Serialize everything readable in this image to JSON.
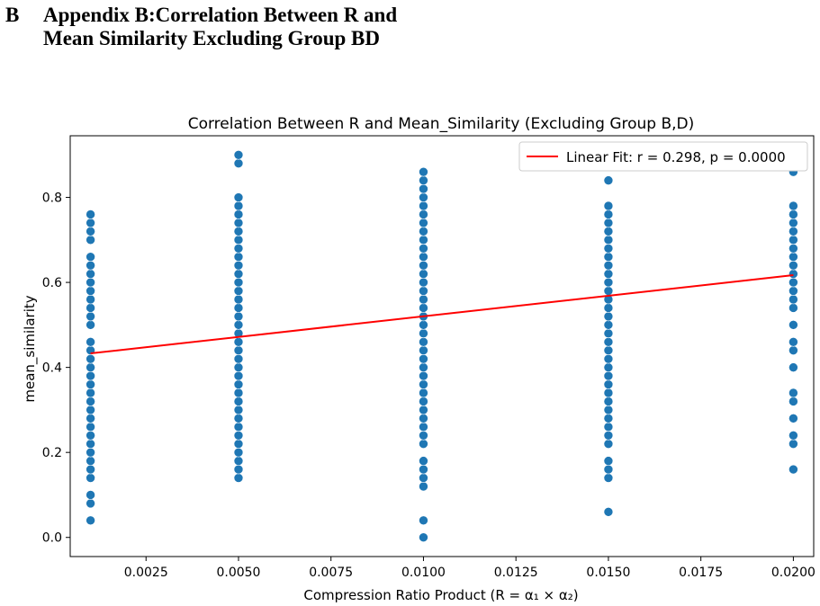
{
  "section": {
    "number": "B",
    "title": "Appendix B:Correlation Between R and Mean Similarity Excluding Group BD"
  },
  "colors": {
    "points": "#1f77b4",
    "fit_line": "#ff0000",
    "axes": "#000000"
  },
  "chart_data": {
    "type": "scatter",
    "title": "Correlation Between R and Mean_Similarity (Excluding Group B,D)",
    "xlabel": "Compression Ratio Product (R = α₁ × α₂)",
    "ylabel": "mean_similarity",
    "xlim": [
      0.00045,
      0.02055
    ],
    "ylim": [
      -0.045,
      0.945
    ],
    "xticks": [
      0.0025,
      0.005,
      0.0075,
      0.01,
      0.0125,
      0.015,
      0.0175,
      0.02
    ],
    "xtick_labels": [
      "0.0025",
      "0.0050",
      "0.0075",
      "0.0100",
      "0.0125",
      "0.0150",
      "0.0175",
      "0.0200"
    ],
    "yticks": [
      0.0,
      0.2,
      0.4,
      0.6,
      0.8
    ],
    "ytick_labels": [
      "0.0",
      "0.2",
      "0.4",
      "0.6",
      "0.8"
    ],
    "grid": false,
    "legend_position": "top-right",
    "series": [
      {
        "name": "",
        "kind": "scatter",
        "groups": [
          {
            "x": 0.001,
            "y": [
              0.04,
              0.08,
              0.1,
              0.14,
              0.16,
              0.18,
              0.2,
              0.22,
              0.24,
              0.26,
              0.28,
              0.3,
              0.32,
              0.34,
              0.36,
              0.38,
              0.4,
              0.42,
              0.44,
              0.46,
              0.5,
              0.52,
              0.54,
              0.56,
              0.58,
              0.6,
              0.62,
              0.64,
              0.66,
              0.7,
              0.72,
              0.74,
              0.76
            ]
          },
          {
            "x": 0.005,
            "y": [
              0.14,
              0.16,
              0.18,
              0.2,
              0.22,
              0.24,
              0.26,
              0.28,
              0.3,
              0.32,
              0.34,
              0.36,
              0.38,
              0.4,
              0.42,
              0.44,
              0.46,
              0.48,
              0.5,
              0.52,
              0.54,
              0.56,
              0.58,
              0.6,
              0.62,
              0.64,
              0.66,
              0.68,
              0.7,
              0.72,
              0.74,
              0.76,
              0.78,
              0.8,
              0.88,
              0.9
            ]
          },
          {
            "x": 0.01,
            "y": [
              0.0,
              0.04,
              0.12,
              0.14,
              0.16,
              0.18,
              0.22,
              0.24,
              0.26,
              0.28,
              0.3,
              0.32,
              0.34,
              0.36,
              0.38,
              0.4,
              0.42,
              0.44,
              0.46,
              0.48,
              0.5,
              0.52,
              0.54,
              0.56,
              0.58,
              0.6,
              0.62,
              0.64,
              0.66,
              0.68,
              0.7,
              0.72,
              0.74,
              0.76,
              0.78,
              0.8,
              0.82,
              0.84,
              0.86
            ]
          },
          {
            "x": 0.015,
            "y": [
              0.06,
              0.14,
              0.16,
              0.18,
              0.22,
              0.24,
              0.26,
              0.28,
              0.3,
              0.32,
              0.34,
              0.36,
              0.38,
              0.4,
              0.42,
              0.44,
              0.46,
              0.48,
              0.5,
              0.52,
              0.54,
              0.56,
              0.58,
              0.6,
              0.62,
              0.64,
              0.66,
              0.68,
              0.7,
              0.72,
              0.74,
              0.76,
              0.78,
              0.84
            ]
          },
          {
            "x": 0.02,
            "y": [
              0.16,
              0.22,
              0.24,
              0.28,
              0.32,
              0.34,
              0.4,
              0.44,
              0.46,
              0.5,
              0.54,
              0.56,
              0.58,
              0.6,
              0.62,
              0.64,
              0.66,
              0.68,
              0.7,
              0.72,
              0.74,
              0.76,
              0.78,
              0.86
            ]
          }
        ]
      },
      {
        "name": "Linear Fit: r = 0.298, p = 0.0000",
        "kind": "line",
        "x": [
          0.001,
          0.02
        ],
        "y": [
          0.433,
          0.617
        ]
      }
    ]
  }
}
